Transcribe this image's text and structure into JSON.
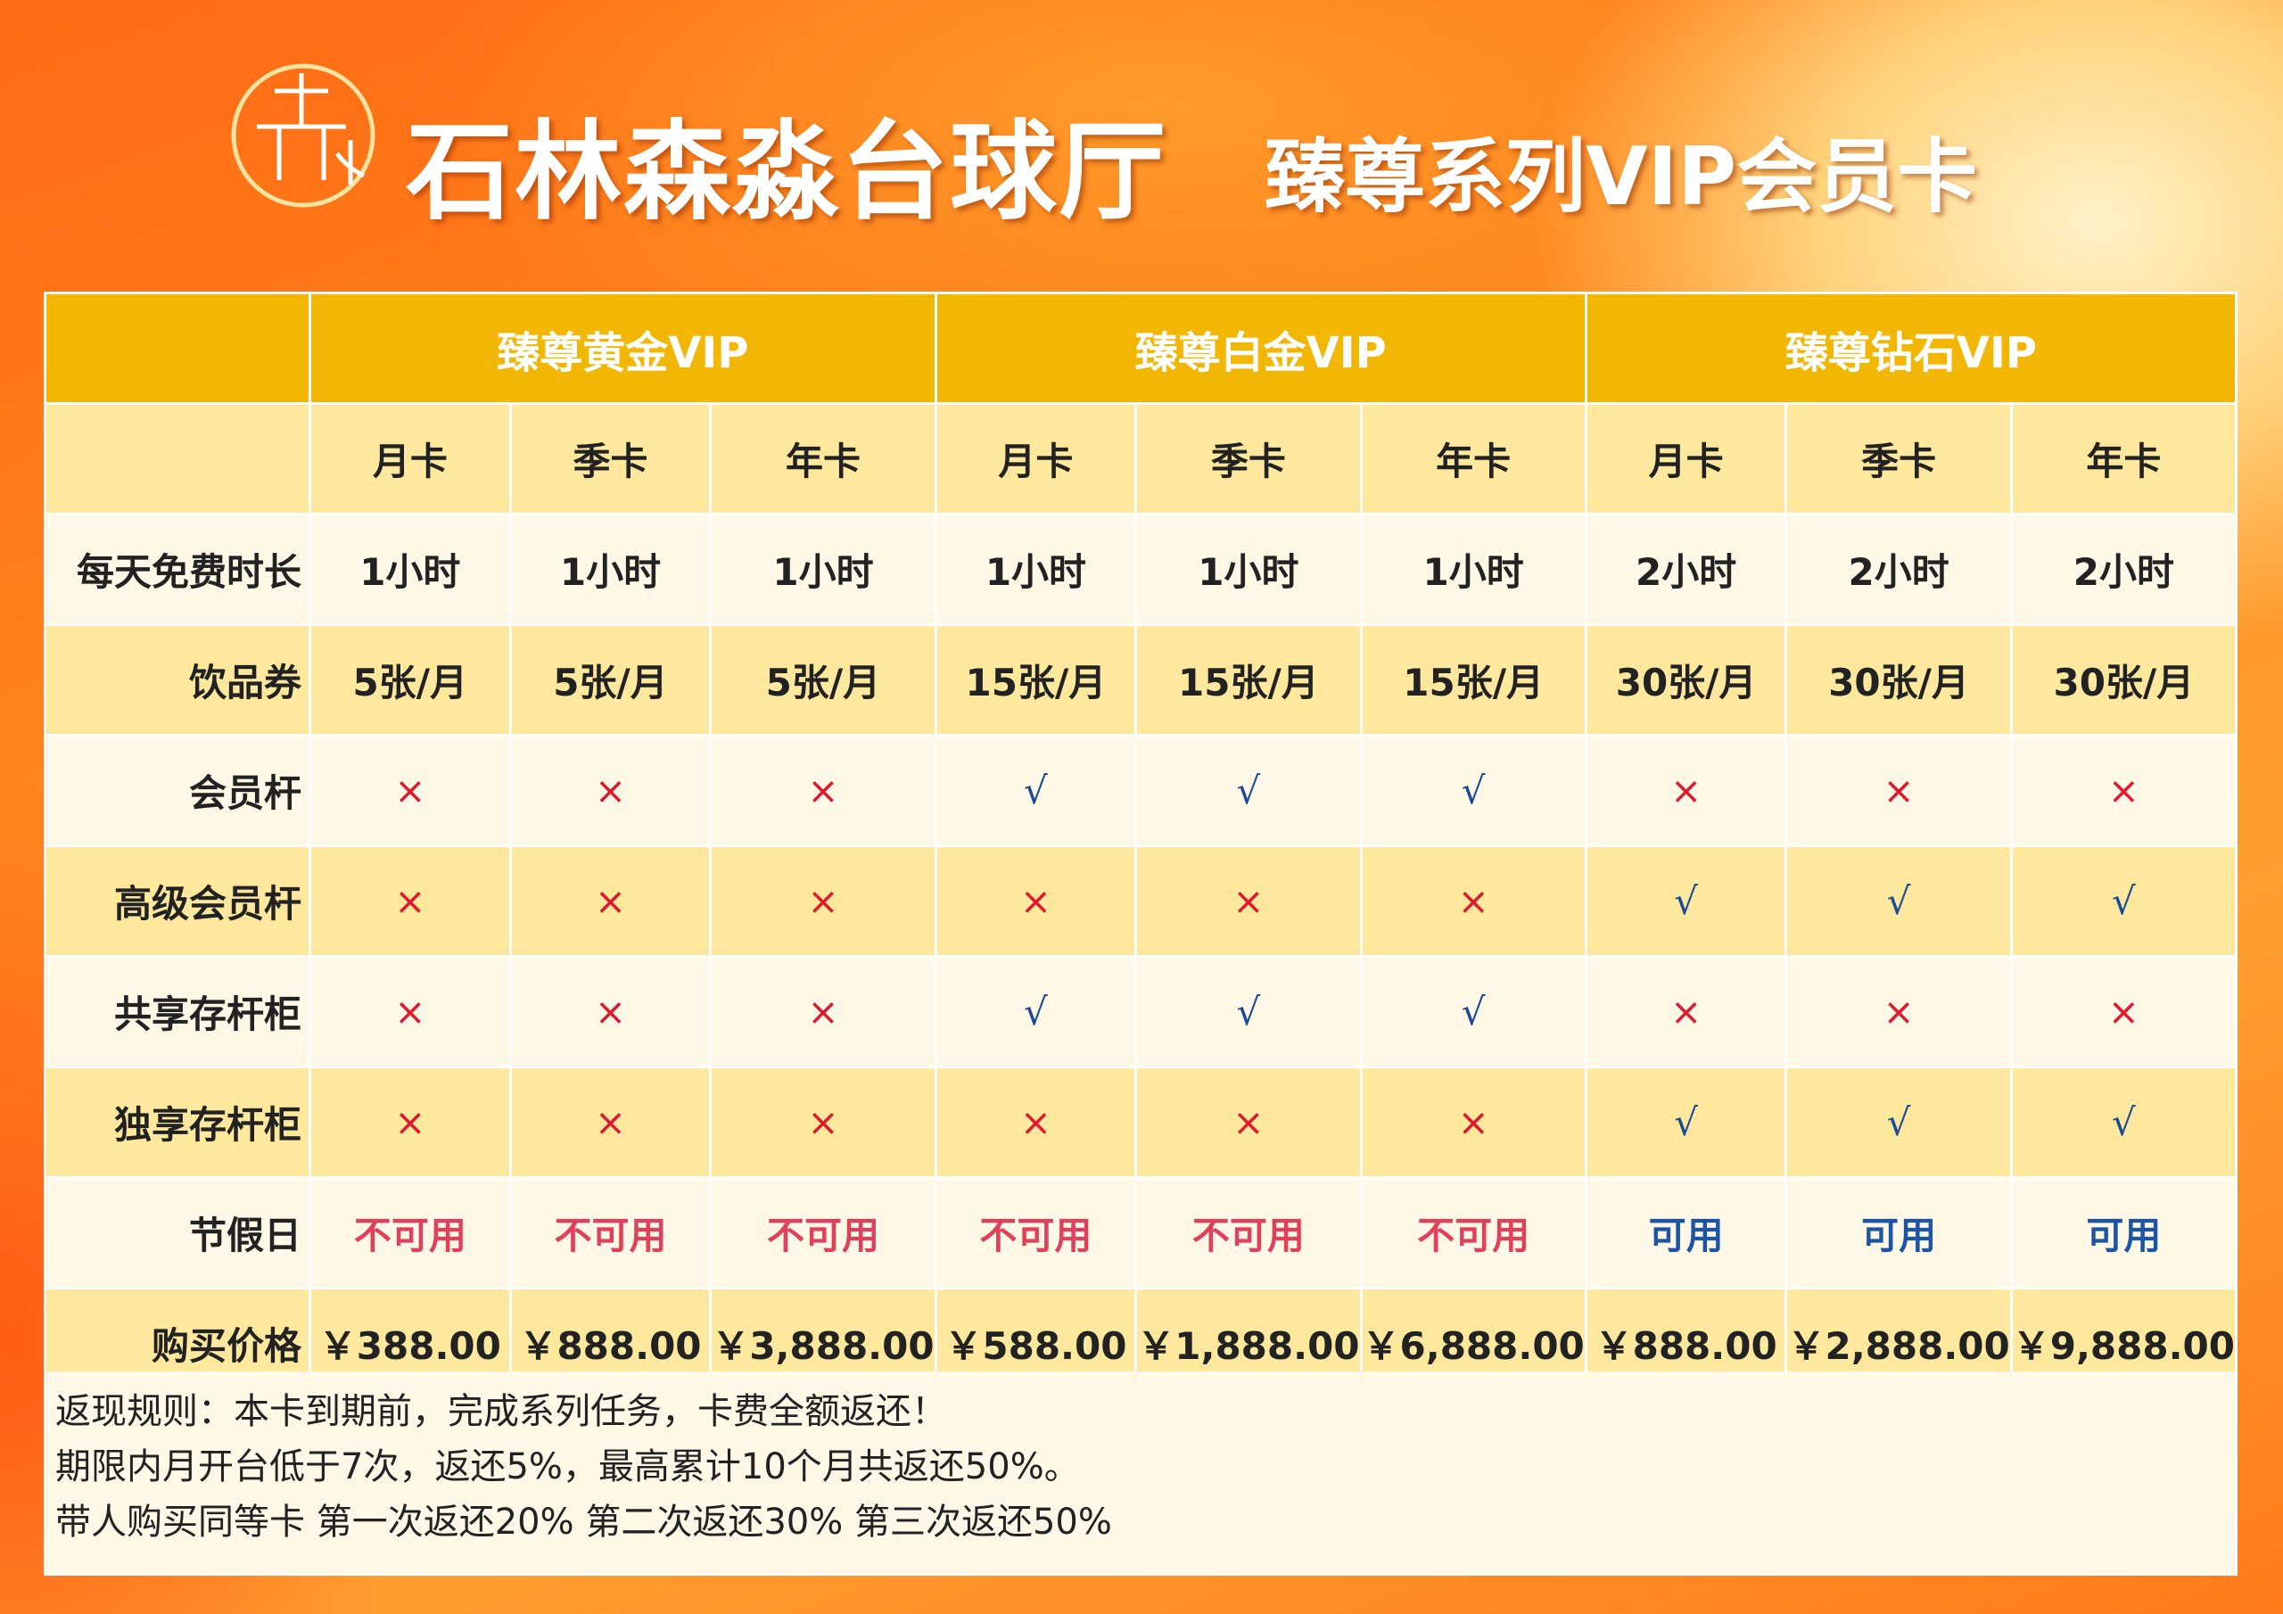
{
  "header": {
    "title": "石林森淼台球厅",
    "subtitle": "臻尊系列VIP会员卡"
  },
  "table": {
    "groups": [
      "臻尊黄金VIP",
      "臻尊白金VIP",
      "臻尊钻石VIP"
    ],
    "subheaders": [
      "月卡",
      "季卡",
      "年卡",
      "月卡",
      "季卡",
      "年卡",
      "月卡",
      "季卡",
      "年卡"
    ],
    "rows": [
      {
        "label": "每天免费时长",
        "cells": [
          "1小时",
          "1小时",
          "1小时",
          "1小时",
          "1小时",
          "1小时",
          "2小时",
          "2小时",
          "2小时"
        ]
      },
      {
        "label": "饮品券",
        "cells": [
          "5张/月",
          "5张/月",
          "5张/月",
          "15张/月",
          "15张/月",
          "15张/月",
          "30张/月",
          "30张/月",
          "30张/月"
        ]
      },
      {
        "label": "会员杆",
        "cells": [
          "×",
          "×",
          "×",
          "√",
          "√",
          "√",
          "×",
          "×",
          "×"
        ]
      },
      {
        "label": "高级会员杆",
        "cells": [
          "×",
          "×",
          "×",
          "×",
          "×",
          "×",
          "√",
          "√",
          "√"
        ]
      },
      {
        "label": "共享存杆柜",
        "cells": [
          "×",
          "×",
          "×",
          "√",
          "√",
          "√",
          "×",
          "×",
          "×"
        ]
      },
      {
        "label": "独享存杆柜",
        "cells": [
          "×",
          "×",
          "×",
          "×",
          "×",
          "×",
          "√",
          "√",
          "√"
        ]
      },
      {
        "label": "节假日",
        "cells": [
          "不可用",
          "不可用",
          "不可用",
          "不可用",
          "不可用",
          "不可用",
          "可用",
          "可用",
          "可用"
        ]
      },
      {
        "label": "购买价格",
        "cells": [
          "￥388.00",
          "￥888.00",
          "￥3,888.00",
          "￥588.00",
          "￥1,888.00",
          "￥6,888.00",
          "￥888.00",
          "￥2,888.00",
          "￥9,888.00"
        ]
      }
    ],
    "cell_colors": {
      "×": "#e3172b",
      "√": "#1b4a98",
      "不可用": "#e1405b",
      "可用": "#1d55a6"
    }
  },
  "notes": [
    "返现规则：本卡到期前，完成系列任务，卡费全额返还！",
    "期限内月开台低于7次，返还5%，最高累计10个月共返还50%。",
    "带人购买同等卡 第一次返还20% 第二次返还30%  第三次返还50%"
  ]
}
